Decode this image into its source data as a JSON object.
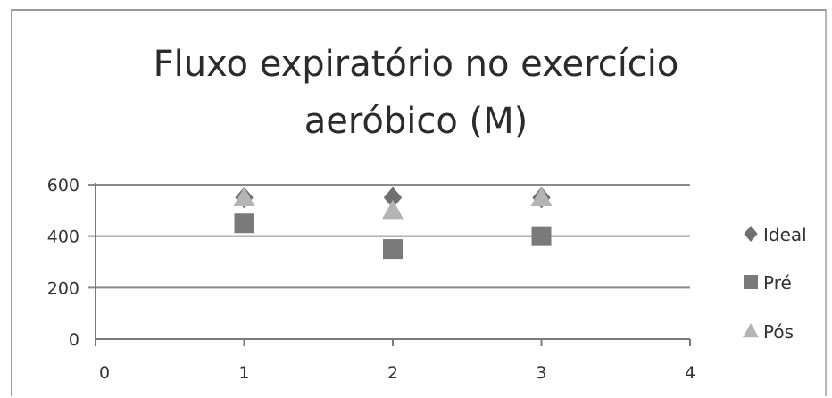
{
  "chart_data": {
    "type": "scatter",
    "title_lines": [
      "Fluxo expiratório no exercício",
      "aeróbico (M)"
    ],
    "xlim": [
      0,
      4
    ],
    "ylim": [
      0,
      600
    ],
    "x_ticks": [
      0,
      1,
      2,
      3,
      4
    ],
    "y_ticks": [
      0,
      200,
      400,
      600
    ],
    "grid": "horizontal",
    "legend_position": "right",
    "series": [
      {
        "name": "Ideal",
        "marker": "diamond",
        "color": "#707070",
        "x": [
          1,
          2,
          3
        ],
        "y": [
          550,
          550,
          550
        ]
      },
      {
        "name": "Pré",
        "marker": "square",
        "color": "#7a7a7a",
        "x": [
          1,
          2,
          3
        ],
        "y": [
          450,
          350,
          400
        ]
      },
      {
        "name": "Pós",
        "marker": "triangle",
        "color": "#b4b4b4",
        "x": [
          1,
          2,
          3
        ],
        "y": [
          550,
          500,
          550
        ]
      }
    ]
  }
}
